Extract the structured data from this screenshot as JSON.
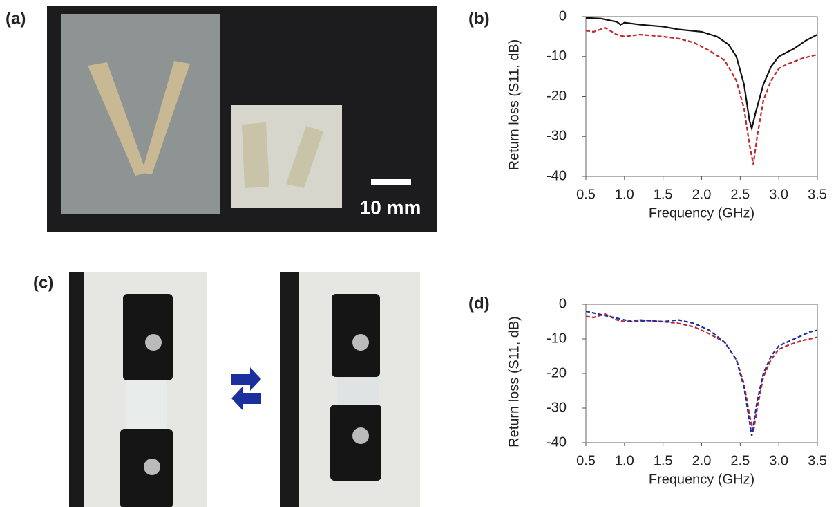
{
  "panel_labels": [
    "(a)",
    "(b)",
    "(c)",
    "(d)"
  ],
  "scale_bar": "10 mm",
  "chart_data": [
    {
      "type": "line",
      "ylabel": "Return loss (S11, dB)",
      "xlabel": "Frequency (GHz)",
      "xlim": [
        0.5,
        3.5
      ],
      "ylim": [
        -40,
        0
      ],
      "xticks": [
        0.5,
        {
          "value": 1,
          "label": "1.0"
        },
        1.5,
        {
          "value": 2,
          "label": "2.0"
        },
        2.5,
        {
          "value": 3,
          "label": "3.0"
        },
        3.5
      ],
      "yticks": [
        -40,
        -30,
        -20,
        -10,
        0
      ],
      "series": [
        {
          "color": "#111111",
          "dashed": false,
          "x": [
            0.5,
            0.7,
            0.9,
            0.95,
            1.0,
            1.2,
            1.5,
            1.7,
            2.0,
            2.2,
            2.35,
            2.45,
            2.55,
            2.62,
            2.65,
            2.7,
            2.8,
            2.9,
            3.0,
            3.2,
            3.35,
            3.5
          ],
          "values": [
            -0.3,
            -0.5,
            -1.3,
            -2,
            -1.5,
            -2,
            -2.5,
            -3.2,
            -3.8,
            -5,
            -7,
            -10,
            -17,
            -26,
            -28,
            -24,
            -17,
            -12.5,
            -10,
            -8,
            -6,
            -4.5
          ]
        },
        {
          "color": "#c0282d",
          "dashed": true,
          "x": [
            0.5,
            0.6,
            0.75,
            0.9,
            1.0,
            1.2,
            1.5,
            1.7,
            1.9,
            2.1,
            2.3,
            2.45,
            2.55,
            2.62,
            2.67,
            2.72,
            2.8,
            2.9,
            3.0,
            3.1,
            3.3,
            3.5
          ],
          "values": [
            -3.5,
            -3.8,
            -2.8,
            -4.5,
            -5,
            -4.5,
            -5,
            -5.5,
            -6.5,
            -8.5,
            -11,
            -16,
            -23,
            -32,
            -37,
            -30,
            -21,
            -16,
            -13,
            -12,
            -10.5,
            -9.5
          ]
        }
      ]
    },
    {
      "type": "line",
      "ylabel": "Return loss (S11, dB)",
      "xlabel": "Frequency (GHz)",
      "xlim": [
        0.5,
        3.5
      ],
      "ylim": [
        -40,
        0
      ],
      "xticks": [
        0.5,
        {
          "value": 1,
          "label": "1.0"
        },
        1.5,
        {
          "value": 2,
          "label": "2.0"
        },
        2.5,
        {
          "value": 3,
          "label": "3.0"
        },
        3.5
      ],
      "yticks": [
        -40,
        -30,
        -20,
        -10,
        0
      ],
      "series": [
        {
          "color": "#c0282d",
          "dashed": true,
          "x": [
            0.5,
            0.6,
            0.75,
            0.9,
            1.0,
            1.2,
            1.5,
            1.7,
            1.9,
            2.1,
            2.3,
            2.45,
            2.55,
            2.62,
            2.67,
            2.72,
            2.8,
            2.9,
            3.0,
            3.1,
            3.3,
            3.5
          ],
          "values": [
            -3.5,
            -3.8,
            -2.8,
            -4.5,
            -5,
            -4.5,
            -5,
            -5.5,
            -6.5,
            -8.5,
            -11,
            -16,
            -23,
            -32,
            -37,
            -30,
            -21,
            -16,
            -13,
            -12,
            -10.5,
            -9.5
          ]
        },
        {
          "color": "#1f2fa0",
          "dashed": true,
          "x": [
            0.5,
            0.7,
            0.9,
            1.1,
            1.3,
            1.5,
            1.7,
            1.9,
            2.1,
            2.3,
            2.45,
            2.55,
            2.65,
            2.72,
            2.8,
            2.9,
            3.0,
            3.2,
            3.4,
            3.5
          ],
          "values": [
            -2,
            -3,
            -4,
            -5,
            -4.7,
            -5,
            -4.5,
            -5.5,
            -7.5,
            -11,
            -16,
            -24,
            -38,
            -28,
            -20,
            -15,
            -12,
            -10,
            -8,
            -7.5
          ]
        }
      ]
    }
  ]
}
